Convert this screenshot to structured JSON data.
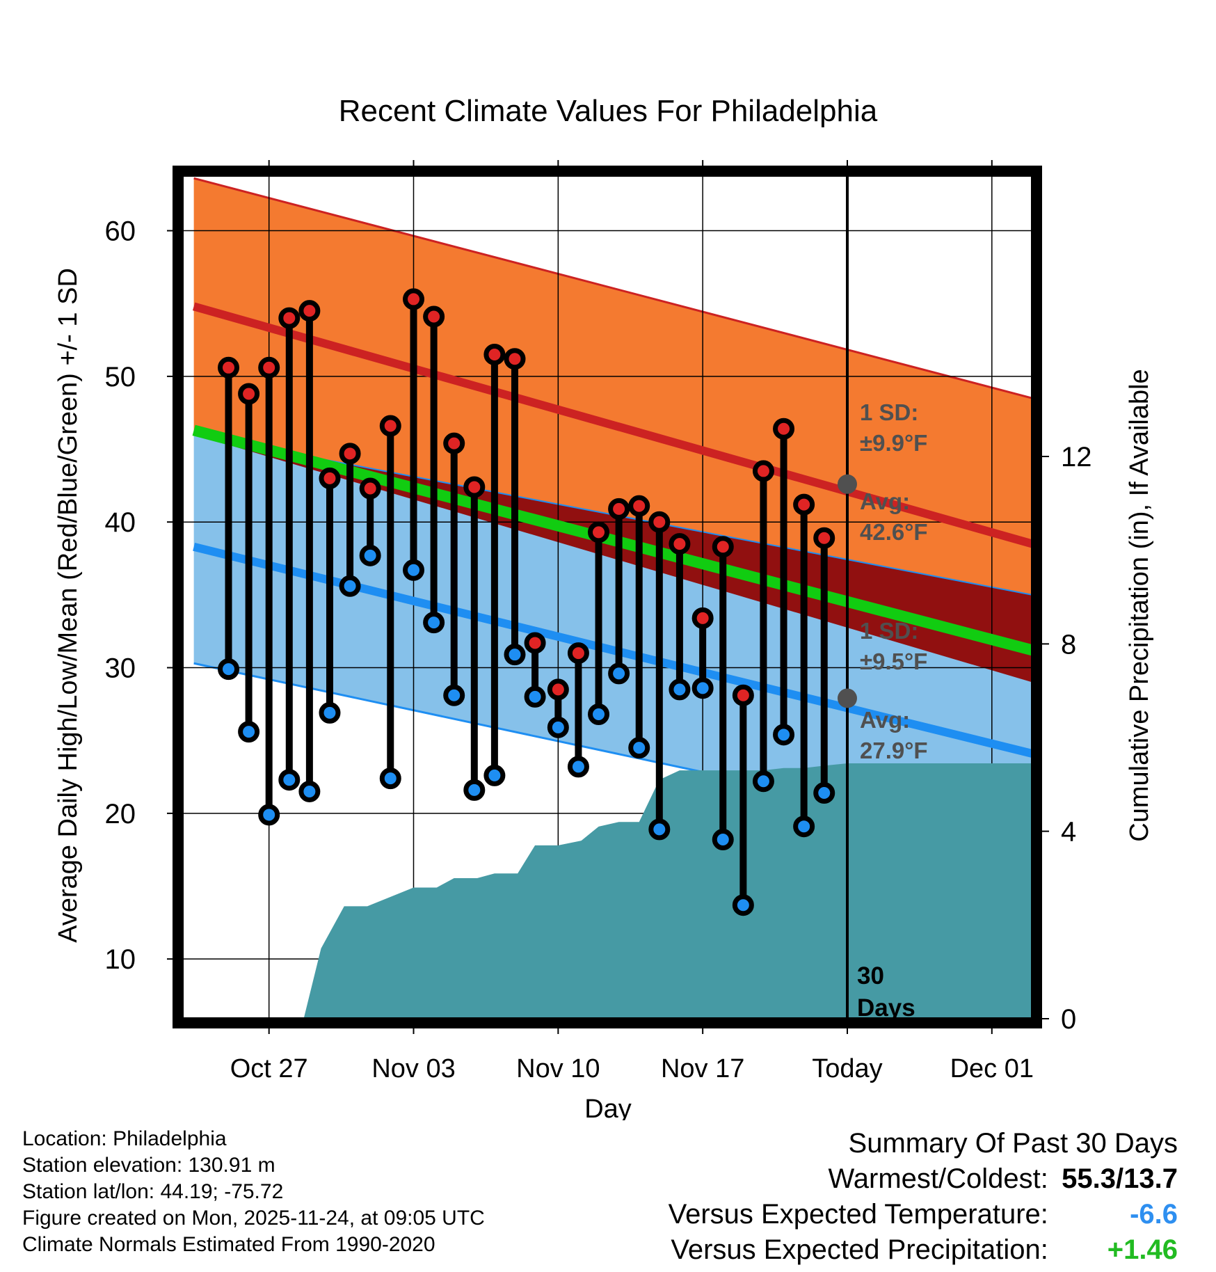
{
  "chart_data": {
    "type": "line",
    "title": "Recent Climate Values For Philadelphia",
    "xlabel": "Day",
    "ylabel": "Average Daily High/Low/Mean (Red/Blue/Green) +/- 1 SD",
    "y2label": "Cumulative Precipitation (in), If Available",
    "x_range": [
      -3.5,
      11.2
    ],
    "ylim": [
      5.9,
      63.8
    ],
    "y_ticks": [
      10,
      20,
      30,
      40,
      50,
      60
    ],
    "y2lim": [
      0,
      18
    ],
    "y2_ticks": [
      0,
      4,
      8,
      12
    ],
    "x_ticks": [
      {
        "x": -2,
        "label": "Oct 27"
      },
      {
        "x": 0.5,
        "label": "Nov 03"
      },
      {
        "x": 3,
        "label": "Nov 10"
      },
      {
        "x": 5.5,
        "label": "Nov 17"
      },
      {
        "x": 8,
        "label": "Today"
      },
      {
        "x": 10.5,
        "label": "Dec 01"
      }
    ],
    "today_x": 8,
    "normals": {
      "x": [
        -3.3,
        11.2
      ],
      "high_avg": [
        54.8,
        38.5
      ],
      "high_upper": [
        63.6,
        48.5
      ],
      "high_lower": [
        46.0,
        29.0
      ],
      "mean_avg": [
        46.3,
        31.2
      ],
      "low_avg": [
        38.3,
        24.1
      ],
      "low_upper": [
        46.0,
        35.0
      ],
      "low_lower": [
        30.3,
        18.0
      ]
    },
    "normal_labels": {
      "high_sd_title": "1 SD:",
      "high_sd_value": "±9.9°F",
      "high_avg_title": "Avg:",
      "high_avg_value": "42.6°F",
      "low_sd_title": "1 SD:",
      "low_sd_value": "±9.5°F",
      "low_avg_title": "Avg:",
      "low_avg_value": "27.9°F",
      "today_high_avg": 42.6,
      "today_low_avg": 27.9
    },
    "days_label": "30",
    "days_label2": "Days",
    "daily": [
      {
        "x": -2.7,
        "high": 50.6,
        "low": 29.9
      },
      {
        "x": -2.35,
        "high": 48.8,
        "low": 25.6
      },
      {
        "x": -2.0,
        "high": 50.6,
        "low": 19.9
      },
      {
        "x": -1.65,
        "high": 54.0,
        "low": 22.3
      },
      {
        "x": -1.3,
        "high": 54.5,
        "low": 21.5
      },
      {
        "x": -0.95,
        "high": 43.0,
        "low": 26.9
      },
      {
        "x": -0.6,
        "high": 44.7,
        "low": 35.6
      },
      {
        "x": -0.25,
        "high": 42.3,
        "low": 37.7
      },
      {
        "x": 0.1,
        "high": 46.6,
        "low": 22.4
      },
      {
        "x": 0.5,
        "high": 55.3,
        "low": 36.7
      },
      {
        "x": 0.85,
        "high": 54.1,
        "low": 33.1
      },
      {
        "x": 1.2,
        "high": 45.4,
        "low": 28.1
      },
      {
        "x": 1.55,
        "high": 42.4,
        "low": 21.6
      },
      {
        "x": 1.9,
        "high": 51.5,
        "low": 22.6
      },
      {
        "x": 2.25,
        "high": 51.2,
        "low": 30.9
      },
      {
        "x": 2.6,
        "high": 31.7,
        "low": 28.0
      },
      {
        "x": 3.0,
        "high": 28.5,
        "low": 25.9
      },
      {
        "x": 3.35,
        "high": 31.0,
        "low": 23.2
      },
      {
        "x": 3.7,
        "high": 39.3,
        "low": 26.8
      },
      {
        "x": 4.05,
        "high": 40.9,
        "low": 29.6
      },
      {
        "x": 4.4,
        "high": 41.1,
        "low": 24.5
      },
      {
        "x": 4.75,
        "high": 40.0,
        "low": 18.9
      },
      {
        "x": 5.1,
        "high": 38.5,
        "low": 28.5
      },
      {
        "x": 5.5,
        "high": 33.4,
        "low": 28.6
      },
      {
        "x": 5.85,
        "high": 38.3,
        "low": 18.2
      },
      {
        "x": 6.2,
        "high": 28.1,
        "low": 13.7
      },
      {
        "x": 6.55,
        "high": 43.5,
        "low": 22.2
      },
      {
        "x": 6.9,
        "high": 46.4,
        "low": 25.4
      },
      {
        "x": 7.25,
        "high": 41.2,
        "low": 19.1
      },
      {
        "x": 7.6,
        "high": 38.9,
        "low": 21.4
      }
    ],
    "precip": {
      "x": [
        -1.7,
        -1.4,
        -1.1,
        -0.7,
        -0.3,
        0.5,
        0.9,
        1.2,
        1.6,
        1.9,
        2.3,
        2.6,
        3.0,
        3.4,
        3.7,
        4.05,
        4.4,
        4.75,
        5.1,
        5.5,
        5.85,
        6.2,
        6.55,
        6.9,
        7.25,
        7.6,
        8.0,
        11.2
      ],
      "cumulative": [
        0,
        0,
        1.5,
        2.4,
        2.4,
        2.8,
        2.8,
        3.0,
        3.0,
        3.1,
        3.1,
        3.7,
        3.7,
        3.8,
        4.1,
        4.2,
        4.2,
        5.1,
        5.3,
        5.3,
        5.3,
        5.3,
        5.3,
        5.35,
        5.35,
        5.4,
        5.45,
        5.45
      ]
    }
  },
  "footer": {
    "location": "Location: Philadelphia",
    "elevation": "Station elevation: 130.91 m",
    "latlon": "Station lat/lon: 44.19; -75.72",
    "created": "Figure created on Mon, 2025-11-24, at 09:05 UTC",
    "normals": "Climate Normals Estimated From 1990-2020"
  },
  "summary": {
    "title": "Summary Of Past 30 Days",
    "warmest_label": "Warmest/Coldest:",
    "warmest_value": "55.3/13.7",
    "temp_label": "Versus Expected Temperature:",
    "temp_value": "-6.6",
    "precip_label": "Versus Expected Precipitation:",
    "precip_value": "+1.46"
  },
  "colors": {
    "high_band": "#f47a30",
    "high_line": "#cc2222",
    "low_band": "#86c1ea",
    "low_line": "#1e8ef2",
    "overlap": "#911010",
    "mean_line": "#11cc11",
    "precip": "#469aa4",
    "annotation": "#505050",
    "temp_value": "#2e8ff0",
    "precip_value": "#22bb22"
  }
}
